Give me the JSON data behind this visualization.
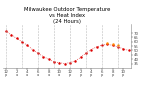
{
  "title": "Milwaukee Outdoor Temperature\nvs Heat Index\n(24 Hours)",
  "title_fontsize": 3.8,
  "line_color": "#dd0000",
  "heat_color": "#ff8800",
  "background_color": "#ffffff",
  "temp_data": [
    72,
    68,
    64,
    60,
    56,
    51,
    47,
    43,
    40,
    37,
    36,
    35,
    36,
    38,
    42,
    47,
    51,
    54,
    56,
    57,
    56,
    54,
    52,
    50
  ],
  "heat_data": [
    74,
    70,
    66,
    62,
    58,
    53,
    49,
    45,
    42,
    39,
    38,
    37,
    38,
    40,
    44,
    49,
    53,
    56,
    58,
    59,
    58,
    56,
    54,
    52
  ],
  "show_heat": [
    0,
    0,
    0,
    0,
    0,
    0,
    0,
    0,
    0,
    0,
    0,
    0,
    0,
    0,
    0,
    0,
    0,
    0,
    0,
    1,
    1,
    1,
    0,
    0
  ],
  "ylim": [
    30,
    80
  ],
  "yticks": [
    35,
    40,
    45,
    50,
    55,
    60,
    65,
    70
  ],
  "x_labels": [
    "12",
    "",
    "2",
    "",
    "4",
    "",
    "6",
    "",
    "8",
    "",
    "10",
    "",
    "12",
    "",
    "2",
    "",
    "4",
    "",
    "6",
    "",
    "8",
    "",
    "10",
    ""
  ],
  "x_ampm": [
    "p",
    "",
    "a",
    "",
    "a",
    "",
    "a",
    "",
    "a",
    "",
    "a",
    "",
    "p",
    "",
    "p",
    "",
    "p",
    "",
    "p",
    "",
    "p",
    "",
    "p",
    ""
  ],
  "grid_positions": [
    0,
    3,
    6,
    9,
    12,
    15,
    18,
    21
  ],
  "grid_color": "#aaaaaa",
  "tick_color": "#444444",
  "tick_fontsize": 2.8
}
